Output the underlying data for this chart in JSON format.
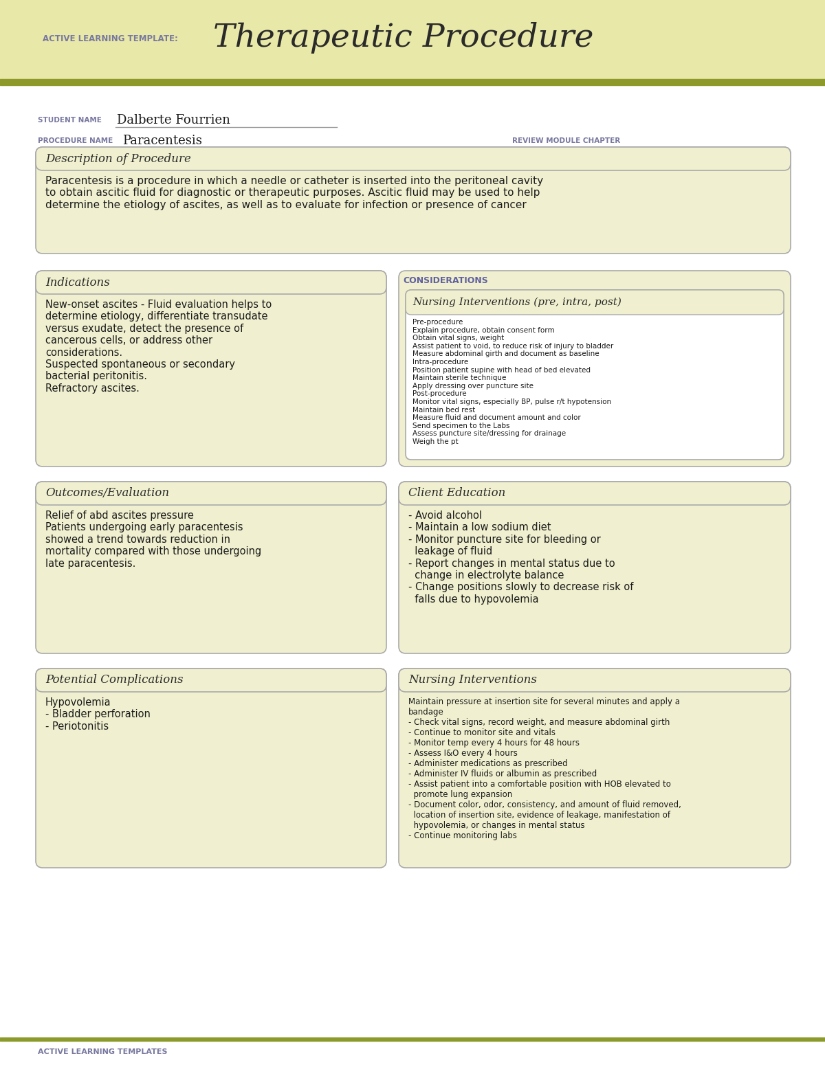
{
  "title_label": "ACTIVE LEARNING TEMPLATE:",
  "title_main": "Therapeutic Procedure",
  "student_name_label": "STUDENT NAME",
  "student_name": "Dalberte Fourrien",
  "procedure_name_label": "PROCEDURE NAME",
  "procedure_name": "Paracentesis",
  "review_label": "REVIEW MODULE CHAPTER",
  "header_bg": "#e8e8a8",
  "olive_line": "#8b9a2a",
  "box_bg": "#f0f0d0",
  "box_border": "#aaaaaa",
  "page_bg": "#ffffff",
  "label_color": "#7878a0",
  "text_color": "#1a1a1a",
  "considerations_color": "#6060a0",
  "section_title_color": "#2a2a2a",
  "description_title": "Description of Procedure",
  "description_text": "Paracentesis is a procedure in which a needle or catheter is inserted into the peritoneal cavity\nto obtain ascitic fluid for diagnostic or therapeutic purposes. Ascitic fluid may be used to help\ndetermine the etiology of ascites, as well as to evaluate for infection or presence of cancer",
  "indications_title": "Indications",
  "indications_text": "New-onset ascites - Fluid evaluation helps to\ndetermine etiology, differentiate transudate\nversus exudate, detect the presence of\ncancerous cells, or address other\nconsiderations.\nSuspected spontaneous or secondary\nbacterial peritonitis.\nRefractory ascites.",
  "considerations_header": "CONSIDERATIONS",
  "nursing_interventions_title": "Nursing Interventions (pre, intra, post)",
  "nursing_interventions_text": "Pre-procedure\nExplain procedure, obtain consent form\nObtain vital signs, weight\nAssist patient to void, to reduce risk of injury to bladder\nMeasure abdominal girth and document as baseline\nIntra-procedure\nPosition patient supine with head of bed elevated\nMaintain sterile technique\nApply dressing over puncture site\nPost-procedure\nMonitor vital signs, especially BP, pulse r/t hypotension\nMaintain bed rest\nMeasure fluid and document amount and color\nSend specimen to the Labs\nAssess puncture site/dressing for drainage\nWeigh the pt",
  "outcomes_title": "Outcomes/Evaluation",
  "outcomes_text": "Relief of abd ascites pressure\nPatients undergoing early paracentesis\nshowed a trend towards reduction in\nmortality compared with those undergoing\nlate paracentesis.",
  "client_education_title": "Client Education",
  "client_education_text": "- Avoid alcohol\n- Maintain a low sodium diet\n- Monitor puncture site for bleeding or\n  leakage of fluid\n- Report changes in mental status due to\n  change in electrolyte balance\n- Change positions slowly to decrease risk of\n  falls due to hypovolemia",
  "complications_title": "Potential Complications",
  "complications_text": "Hypovolemia\n- Bladder perforation\n- Periotonitis",
  "nursing_interventions2_title": "Nursing Interventions",
  "nursing_interventions2_text": "Maintain pressure at insertion site for several minutes and apply a\nbandage\n- Check vital signs, record weight, and measure abdominal girth\n- Continue to monitor site and vitals\n- Monitor temp every 4 hours for 48 hours\n- Assess I&O every 4 hours\n- Administer medications as prescribed\n- Administer IV fluids or albumin as prescribed\n- Assist patient into a comfortable position with HOB elevated to\n  promote lung expansion\n- Document color, odor, consistency, and amount of fluid removed,\n  location of insertion site, evidence of leakage, manifestation of\n  hypovolemia, or changes in mental status\n- Continue monitoring labs",
  "footer_text": "ACTIVE LEARNING TEMPLATES"
}
